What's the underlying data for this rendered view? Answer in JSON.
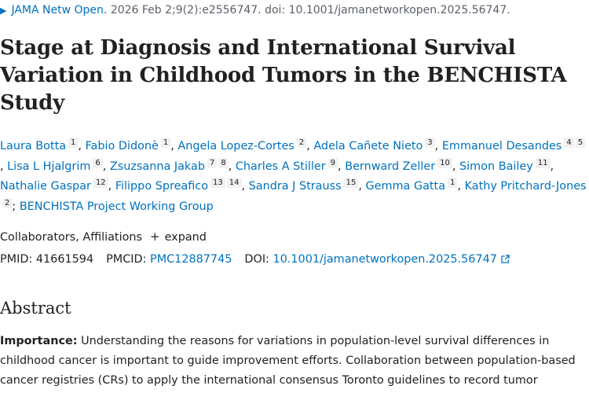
{
  "citation": {
    "journal": "JAMA Netw Open.",
    "details": "2026 Feb 2;9(2):e2556747. doi: 10.1001/jamanetworkopen.2025.56747."
  },
  "title": "Stage at Diagnosis and International Survival Variation in Childhood Tumors in the BENCHISTA Study",
  "authors": [
    {
      "name": "Laura Botta",
      "affs": [
        "1"
      ]
    },
    {
      "name": "Fabio Didonè",
      "affs": [
        "1"
      ]
    },
    {
      "name": "Angela Lopez-Cortes",
      "affs": [
        "2"
      ]
    },
    {
      "name": "Adela Cañete Nieto",
      "affs": [
        "3"
      ]
    },
    {
      "name": "Emmanuel Desandes",
      "affs": [
        "4",
        "5"
      ]
    },
    {
      "name": "Lisa L Hjalgrim",
      "affs": [
        "6"
      ]
    },
    {
      "name": "Zsuzsanna Jakab",
      "affs": [
        "7",
        "8"
      ]
    },
    {
      "name": "Charles A Stiller",
      "affs": [
        "9"
      ]
    },
    {
      "name": "Bernward Zeller",
      "affs": [
        "10"
      ]
    },
    {
      "name": "Simon Bailey",
      "affs": [
        "11"
      ]
    },
    {
      "name": "Nathalie Gaspar",
      "affs": [
        "12"
      ]
    },
    {
      "name": "Filippo Spreafico",
      "affs": [
        "13",
        "14"
      ]
    },
    {
      "name": "Sandra J Strauss",
      "affs": [
        "15"
      ]
    },
    {
      "name": "Gemma Gatta",
      "affs": [
        "1"
      ]
    },
    {
      "name": "Kathy Pritchard-Jones",
      "affs": [
        "2"
      ]
    }
  ],
  "group": "BENCHISTA Project Working Group",
  "collaborators": {
    "label": "Collaborators, Affiliations",
    "expand": "expand"
  },
  "ids": {
    "pmid_label": "PMID:",
    "pmid": "41661594",
    "pmcid_label": "PMCID:",
    "pmcid": "PMC12887745",
    "doi_label": "DOI:",
    "doi": "10.1001/jamanetworkopen.2025.56747"
  },
  "abstract": {
    "heading": "Abstract",
    "importance_label": "Importance:",
    "importance_text": "Understanding the reasons for variations in population-level survival differences in childhood cancer is important to guide improvement efforts. Collaboration between population-based cancer registries (CRs) to apply the international consensus Toronto guidelines to record tumor"
  },
  "colors": {
    "link": "#0071bc",
    "text": "#212121",
    "muted": "#5b616b",
    "badge_bg": "#f1f1f1"
  }
}
